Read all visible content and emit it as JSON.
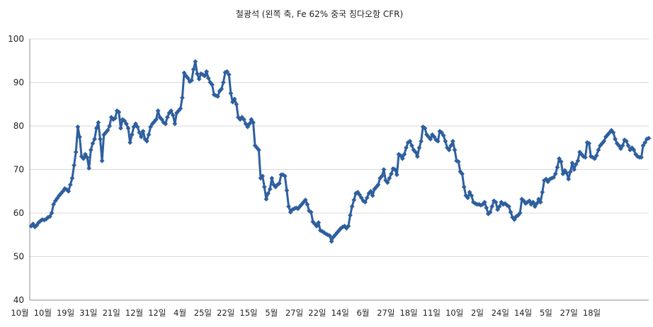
{
  "chart_data": {
    "type": "line",
    "title": "철광석 (왼쪽 축, Fe 62% 중국 칭다오항 CFR)",
    "xlabel": "",
    "ylabel": "",
    "ylim": [
      40,
      100
    ],
    "yticks": [
      40,
      50,
      60,
      70,
      80,
      90,
      100
    ],
    "grid": true,
    "legend": "none",
    "x_tick_labels": [
      "10월",
      "10월",
      "19일",
      "31일",
      "21일",
      "12월",
      "12일",
      "4월",
      "25일",
      "22일",
      "15일",
      "5월",
      "27일",
      "22일",
      "14일",
      "6월",
      "27일",
      "18일",
      "11일",
      "10일",
      "2일",
      "24일",
      "14일",
      "5일",
      "27일",
      "18일"
    ],
    "series_color": "#2E5F9E",
    "series": [
      {
        "values": [
          57.0,
          57.5,
          56.8,
          57.2,
          57.8,
          58.2,
          58.5,
          58.4,
          58.6,
          59.0,
          59.2,
          60.0,
          62.0,
          62.8,
          63.4,
          64.0,
          64.5,
          65.0,
          65.6,
          65.4,
          65.0,
          66.5,
          68.0,
          71.0,
          74.0,
          79.8,
          77.5,
          73.0,
          72.5,
          73.5,
          72.8,
          70.3,
          74.5,
          76.0,
          77.0,
          79.5,
          80.8,
          77.0,
          72.0,
          78.0,
          78.5,
          79.0,
          80.0,
          82.0,
          81.5,
          81.8,
          83.5,
          83.2,
          79.5,
          81.5,
          81.2,
          80.5,
          79.5,
          76.2,
          78.0,
          79.8,
          80.5,
          79.8,
          78.5,
          77.5,
          78.8,
          77.0,
          76.5,
          78.0,
          79.8,
          80.5,
          81.0,
          81.5,
          83.5,
          82.0,
          81.5,
          80.8,
          80.5,
          82.0,
          83.0,
          83.5,
          82.5,
          80.5,
          83.0,
          83.5,
          84.0,
          86.5,
          92.2,
          91.5,
          91.0,
          90.2,
          90.5,
          93.0,
          94.8,
          92.0,
          90.8,
          92.0,
          91.8,
          91.5,
          92.5,
          91.0,
          90.0,
          89.5,
          87.2,
          87.0,
          86.8,
          88.0,
          88.5,
          90.0,
          92.3,
          92.5,
          91.8,
          87.5,
          85.5,
          86.2,
          85.0,
          82.0,
          81.5,
          82.0,
          81.5,
          80.5,
          79.8,
          80.5,
          81.5,
          80.8,
          75.5,
          75.0,
          74.5,
          68.0,
          68.5,
          66.0,
          63.2,
          64.5,
          65.5,
          68.0,
          66.5,
          66.0,
          66.5,
          66.8,
          68.8,
          68.8,
          68.5,
          65.2,
          61.5,
          60.2,
          60.8,
          61.0,
          61.2,
          61.0,
          61.5,
          62.0,
          62.5,
          63.0,
          62.0,
          60.5,
          60.2,
          58.0,
          57.5,
          57.0,
          57.8,
          56.0,
          55.8,
          55.5,
          55.2,
          55.0,
          54.8,
          53.5,
          54.5,
          55.0,
          55.5,
          56.0,
          56.5,
          56.8,
          57.0,
          56.5,
          57.0,
          59.5,
          61.5,
          63.0,
          64.5,
          64.8,
          64.2,
          63.5,
          62.8,
          62.5,
          63.5,
          64.5,
          65.0,
          64.0,
          65.5,
          66.0,
          66.5,
          68.0,
          68.5,
          70.0,
          67.5,
          67.0,
          68.0,
          69.0,
          70.2,
          70.0,
          68.8,
          73.5,
          73.2,
          72.5,
          73.5,
          75.0,
          76.2,
          76.5,
          75.5,
          74.5,
          74.0,
          73.0,
          75.0,
          76.5,
          79.8,
          79.5,
          78.0,
          77.5,
          77.0,
          78.0,
          77.5,
          76.8,
          76.5,
          78.8,
          78.5,
          77.8,
          76.5,
          75.0,
          74.5,
          75.5,
          76.5,
          74.5,
          72.0,
          71.8,
          69.5,
          69.0,
          66.0,
          64.0,
          63.5,
          64.8,
          64.0,
          62.5,
          62.2,
          62.0,
          62.0,
          61.8,
          62.0,
          62.5,
          61.2,
          59.8,
          60.2,
          61.5,
          62.8,
          62.5,
          60.8,
          61.5,
          62.5,
          62.0,
          62.2,
          61.8,
          61.5,
          60.2,
          59.0,
          58.5,
          59.2,
          59.5,
          60.0,
          63.2,
          62.8,
          62.2,
          62.5,
          62.8,
          62.0,
          62.5,
          61.5,
          62.2,
          63.2,
          62.5,
          64.8,
          67.5,
          67.8,
          67.2,
          67.8,
          68.0,
          68.2,
          69.0,
          70.5,
          72.5,
          71.8,
          69.0,
          69.8,
          69.2,
          67.8,
          69.5,
          71.5,
          70.0,
          71.2,
          72.0,
          74.0,
          73.5,
          73.0,
          72.8,
          76.2,
          76.0,
          73.0,
          72.8,
          72.5,
          73.2,
          74.5,
          75.5,
          76.0,
          76.5,
          77.5,
          78.0,
          78.5,
          79.0,
          78.5,
          77.0,
          76.0,
          75.5,
          74.8,
          75.5,
          76.8,
          76.5,
          75.5,
          74.5,
          75.0,
          74.5,
          73.5,
          73.0,
          72.8,
          72.8,
          75.5,
          76.2,
          77.0,
          77.2
        ]
      }
    ]
  }
}
